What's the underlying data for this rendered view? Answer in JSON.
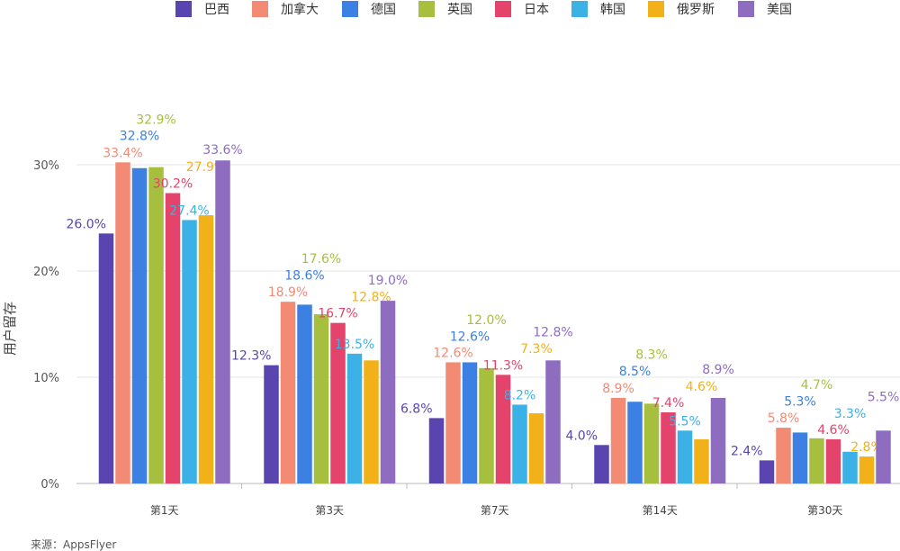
{
  "chart_data": {
    "type": "bar",
    "title": "",
    "xlabel": "",
    "ylabel": "用户留存",
    "categories": [
      "第1天",
      "第3天",
      "第7天",
      "第14天",
      "第30天"
    ],
    "yticks": [
      "0%",
      "10%",
      "20%",
      "30%"
    ],
    "ylim": [
      0,
      30
    ],
    "grid": true,
    "legend_position": "top-right",
    "series": [
      {
        "name": "巴西",
        "color": "#5a45b0",
        "values": [
          26.0,
          12.3,
          6.8,
          4.0,
          2.4
        ]
      },
      {
        "name": "加拿大",
        "color": "#f38a74",
        "values": [
          33.4,
          18.9,
          12.6,
          8.9,
          5.8
        ]
      },
      {
        "name": "德国",
        "color": "#3b80e2",
        "values": [
          32.8,
          18.6,
          12.6,
          8.5,
          5.3
        ]
      },
      {
        "name": "英国",
        "color": "#a6bf3f",
        "values": [
          32.9,
          17.6,
          12.0,
          8.3,
          4.7
        ]
      },
      {
        "name": "日本",
        "color": "#e4436b",
        "values": [
          30.2,
          16.7,
          11.3,
          7.4,
          4.6
        ]
      },
      {
        "name": "韩国",
        "color": "#3cb1e6",
        "values": [
          27.4,
          13.5,
          8.2,
          5.5,
          3.3
        ]
      },
      {
        "name": "俄罗斯",
        "color": "#f2b118",
        "values": [
          27.9,
          12.8,
          7.3,
          4.6,
          2.8
        ]
      },
      {
        "name": "美国",
        "color": "#8e6dc1",
        "values": [
          33.6,
          19.0,
          12.8,
          8.9,
          5.5
        ]
      }
    ]
  },
  "source": "来源：AppsFlyer"
}
